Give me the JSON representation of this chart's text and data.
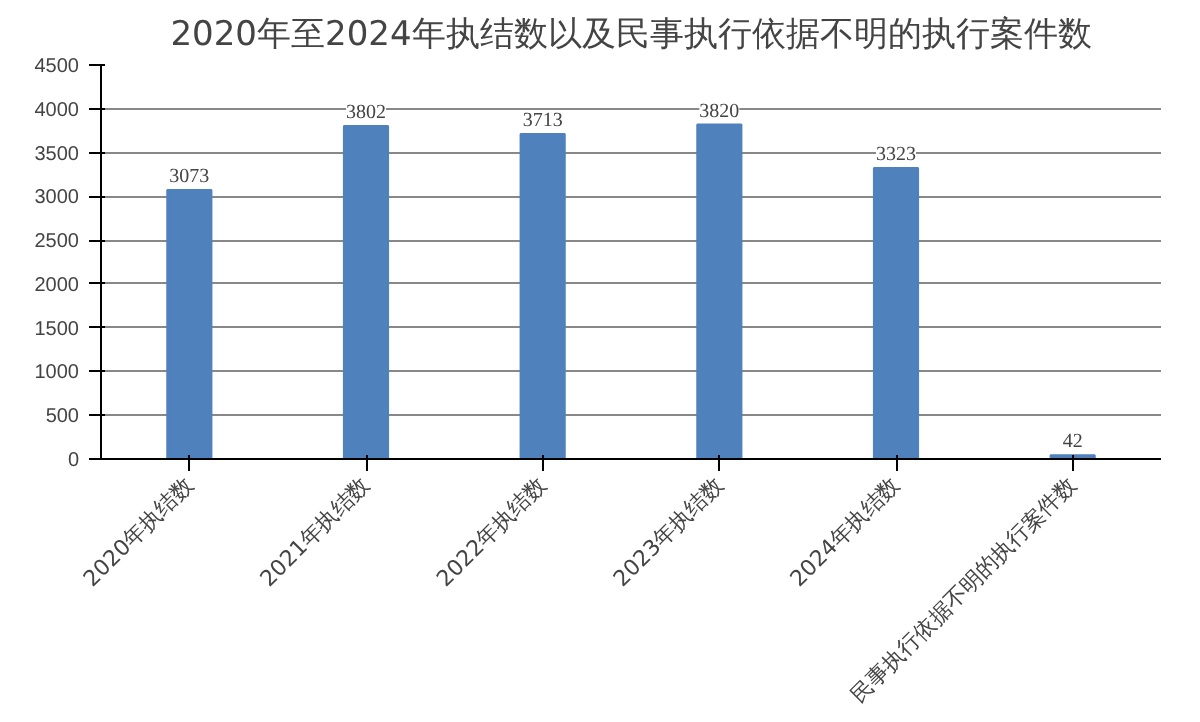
{
  "chart_data": {
    "type": "bar",
    "title": "2020年至2024年执结数以及民事执行依据不明的执行案件数",
    "categories": [
      "2020年执结数",
      "2021年执结数",
      "2022年执结数",
      "2023年执结数",
      "2024年执结数",
      "民事执行依据不明的执行案件数"
    ],
    "values": [
      3073,
      3802,
      3713,
      3820,
      3323,
      42
    ],
    "color": "#4f81bd",
    "ylim": [
      0,
      4500
    ],
    "yticks": [
      0,
      500,
      1000,
      1500,
      2000,
      2500,
      3000,
      3500,
      4000,
      4500
    ],
    "grid": "y",
    "data_labels": true
  }
}
